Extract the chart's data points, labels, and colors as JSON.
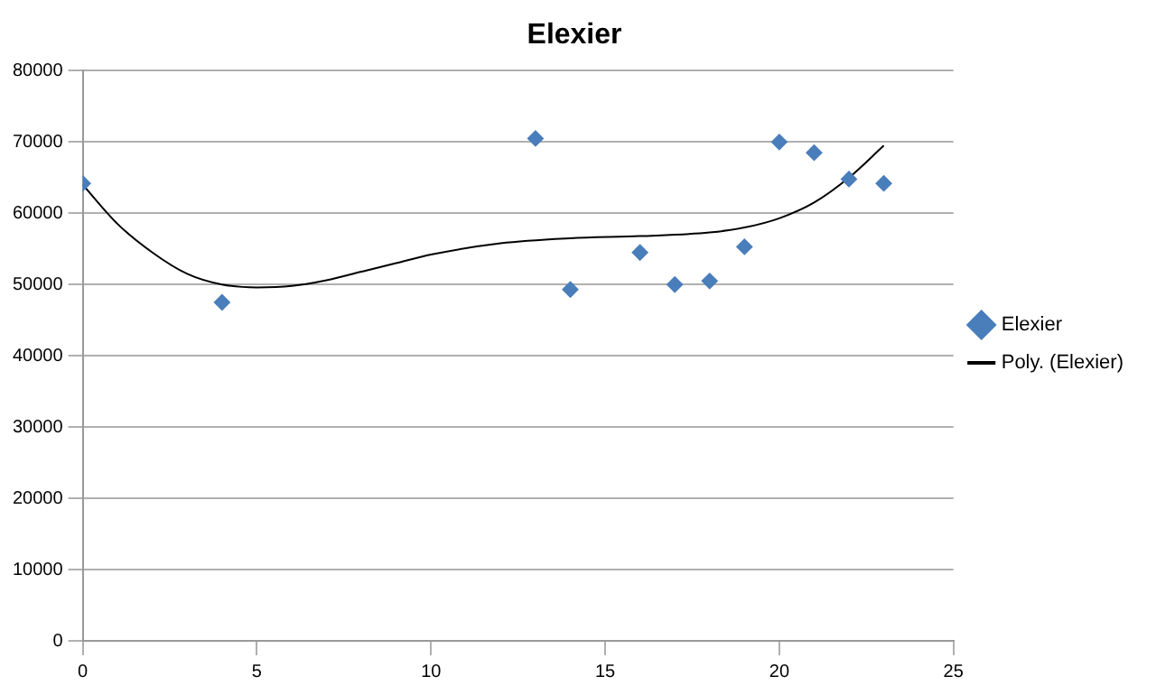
{
  "chart_data": {
    "type": "scatter",
    "title": "Elexier",
    "xlim": [
      0,
      25
    ],
    "xticks": [
      0,
      5,
      10,
      15,
      20,
      25
    ],
    "ylim": [
      0,
      80000
    ],
    "yticks": [
      0,
      10000,
      20000,
      30000,
      40000,
      50000,
      60000,
      70000,
      80000
    ],
    "grid": "y",
    "legend": "right",
    "series": [
      {
        "name": "Elexier",
        "type": "scatter",
        "color": "#4a7ebb",
        "marker": "diamond",
        "x": [
          0,
          4,
          13,
          14,
          16,
          17,
          18,
          19,
          20,
          21,
          22,
          23
        ],
        "values": [
          64200,
          47500,
          70500,
          49300,
          54500,
          50000,
          50500,
          55300,
          70000,
          68500,
          64800,
          64200
        ]
      },
      {
        "name": "Poly. (Elexier)",
        "type": "line",
        "color": "#000000",
        "marker": "none",
        "x": [
          0,
          1,
          2,
          3,
          4,
          5,
          6,
          7,
          8,
          9,
          10,
          12,
          14,
          16,
          18,
          19,
          20,
          21,
          22,
          23
        ],
        "values": [
          64000,
          58500,
          54500,
          51500,
          50000,
          49600,
          49800,
          50600,
          51800,
          53000,
          54200,
          55800,
          56500,
          56800,
          57300,
          58000,
          59300,
          61500,
          65000,
          69500
        ]
      }
    ]
  }
}
